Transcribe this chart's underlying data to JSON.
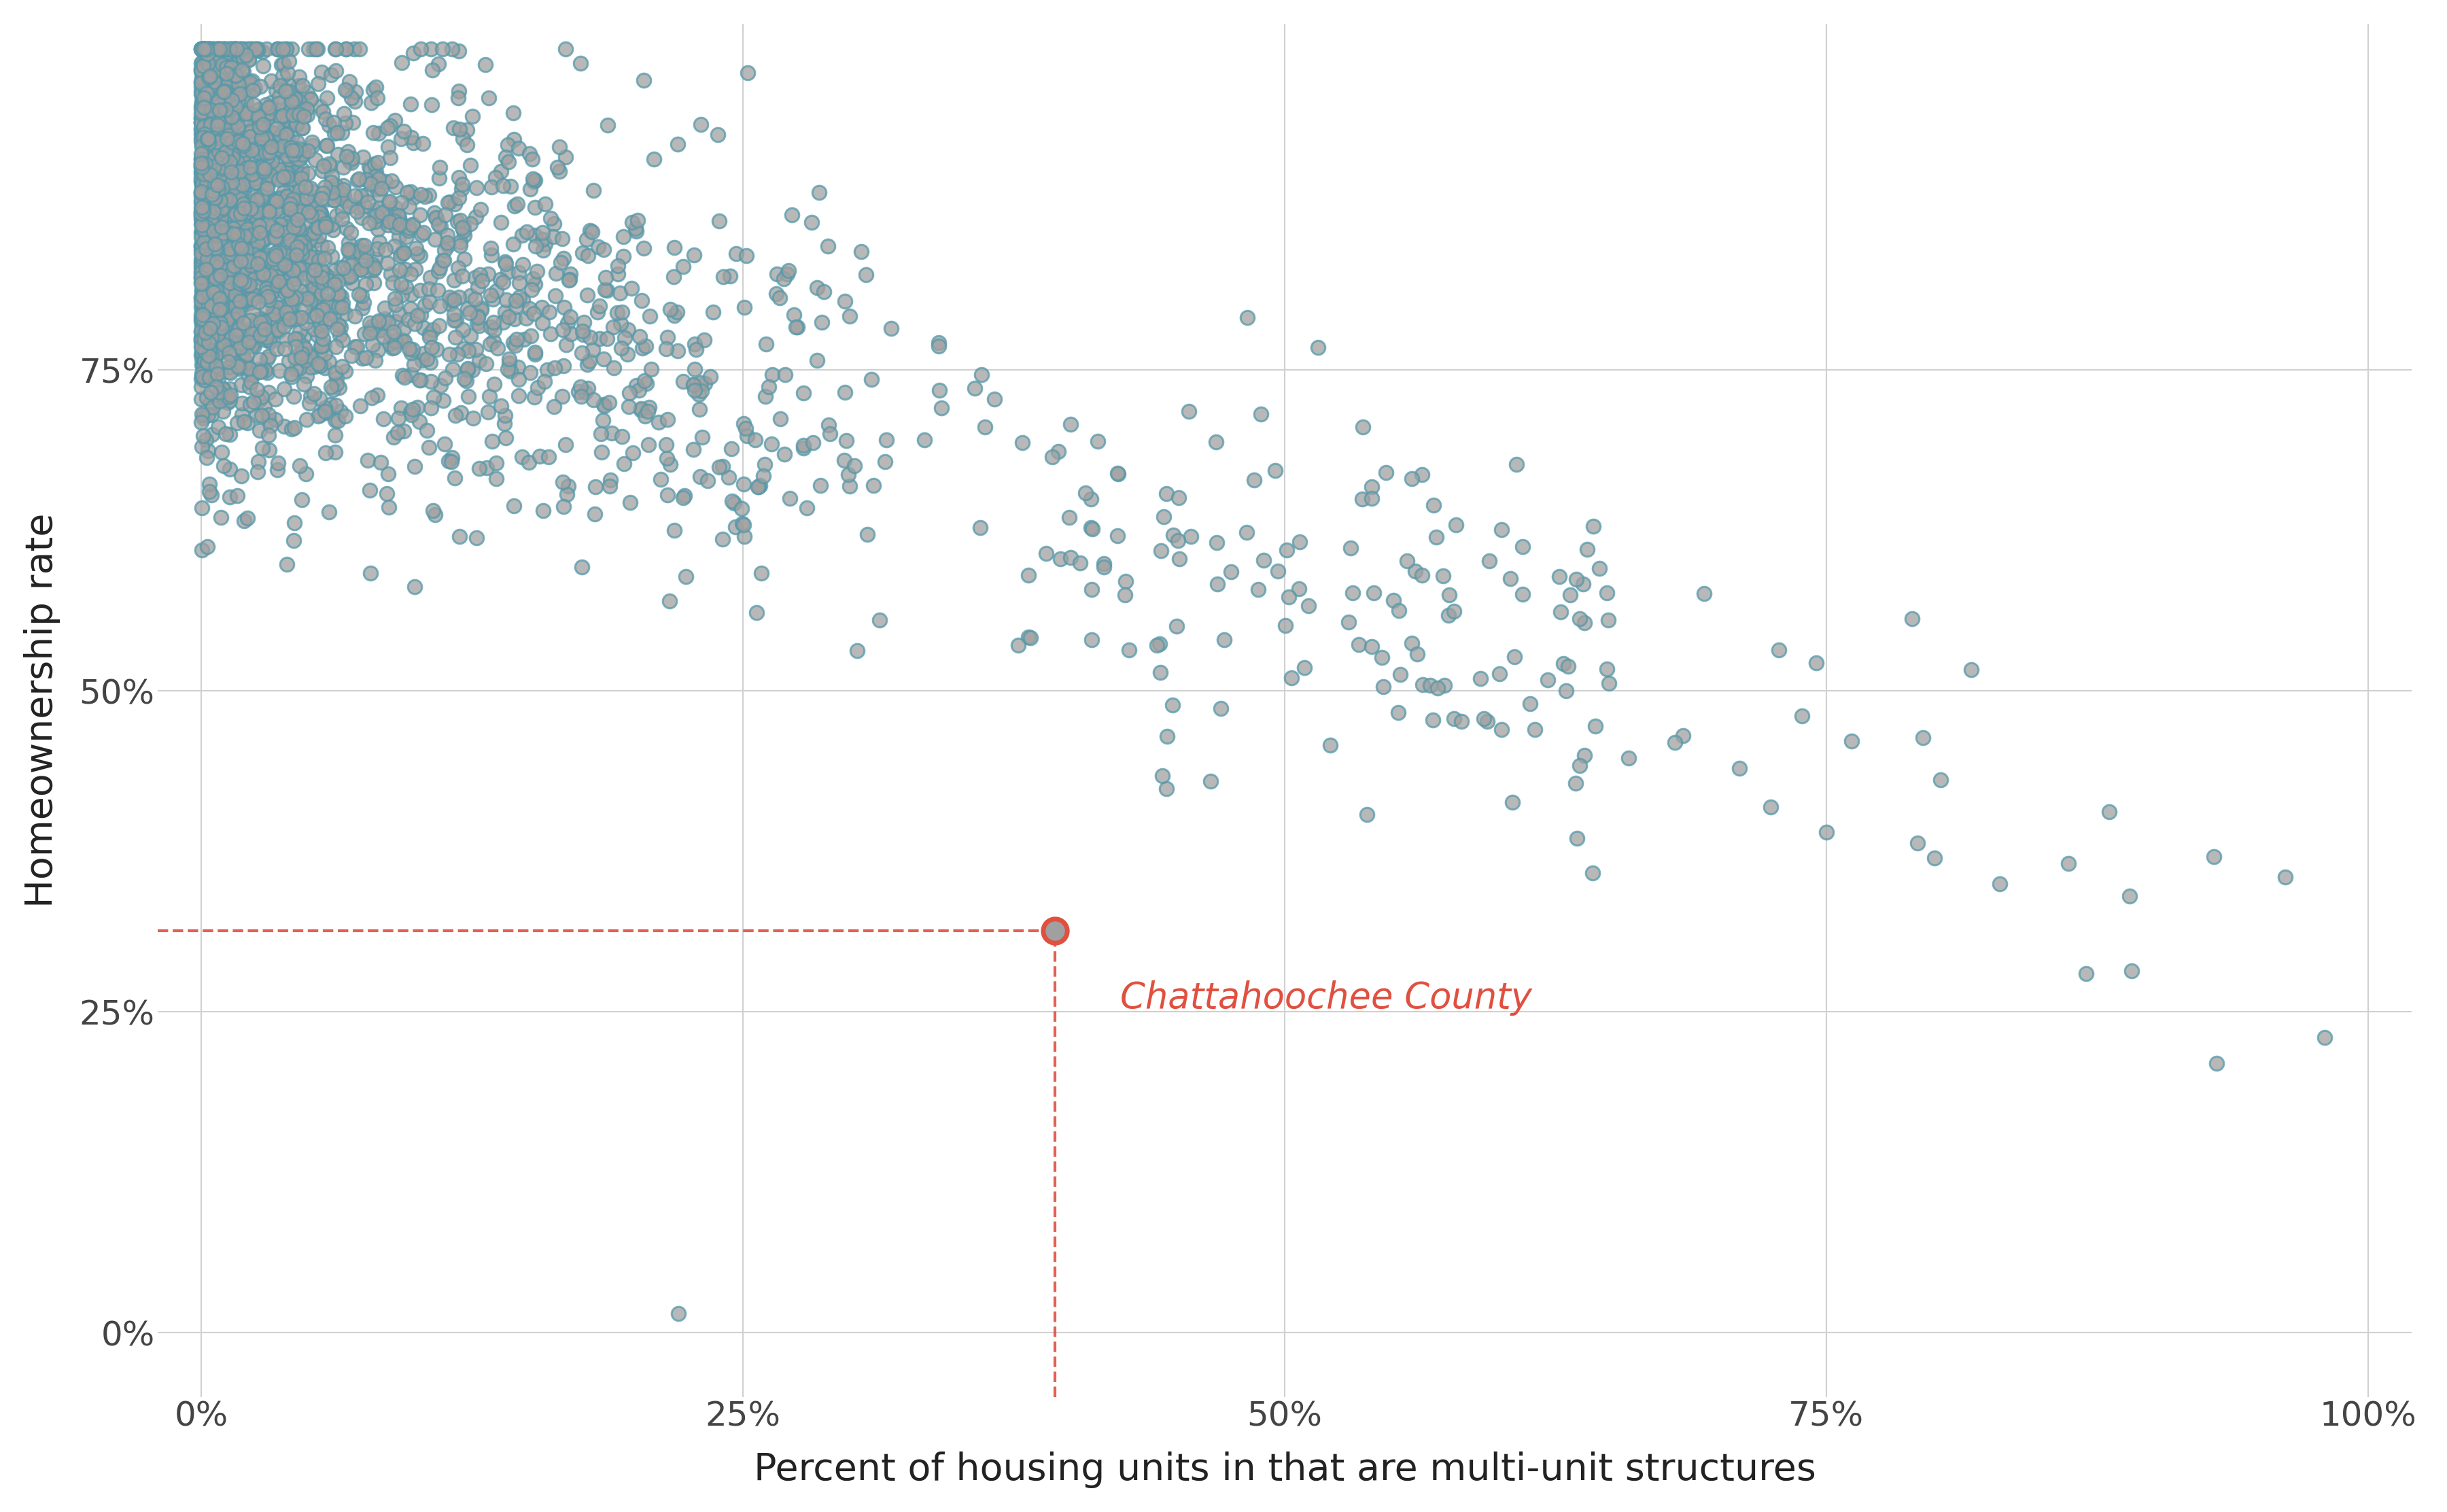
{
  "title": "",
  "xlabel": "Percent of housing units in that are multi-unit structures",
  "ylabel": "Homeownership rate",
  "highlight_x": 39.4,
  "highlight_y": 31.3,
  "highlight_label": "Chattahoochee County",
  "xlim": [
    -2,
    102
  ],
  "ylim": [
    -5,
    102
  ],
  "xticks": [
    0,
    25,
    50,
    75,
    100
  ],
  "yticks": [
    0,
    25,
    50,
    75
  ],
  "background_color": "#ffffff",
  "panel_color": "#ffffff",
  "dot_facecolor": "#a0a0a0",
  "dot_edgecolor": "#5599aa",
  "dot_alpha": 0.75,
  "dot_size": 220,
  "dot_linewidth": 2.2,
  "highlight_color": "#e05040",
  "dashed_color": "#e05040",
  "label_color": "#e05040",
  "grid_color": "#d0d0d0",
  "n_points": 3000,
  "seed": 42
}
